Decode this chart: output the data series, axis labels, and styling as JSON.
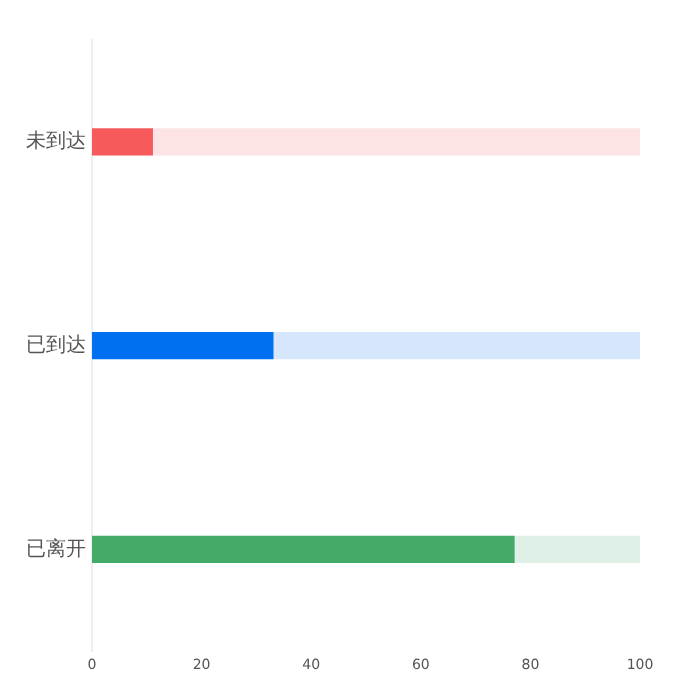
{
  "chart_data": {
    "type": "bar",
    "orientation": "horizontal",
    "stacked": true,
    "categories": [
      "未到达",
      "已到达",
      "已离开"
    ],
    "series": [
      {
        "colors": [
          "#f65a5b",
          "#0070f0",
          "#43aa68"
        ],
        "values": [
          11,
          33,
          77
        ]
      },
      {
        "colors": [
          "#fde3e4",
          "#d5e6fd",
          "#dff1e6"
        ],
        "values": [
          89,
          67,
          23
        ]
      }
    ],
    "xlim": [
      0,
      100
    ],
    "xticks": [
      0,
      20,
      40,
      60,
      80,
      100
    ],
    "grid": false,
    "legend": false
  }
}
